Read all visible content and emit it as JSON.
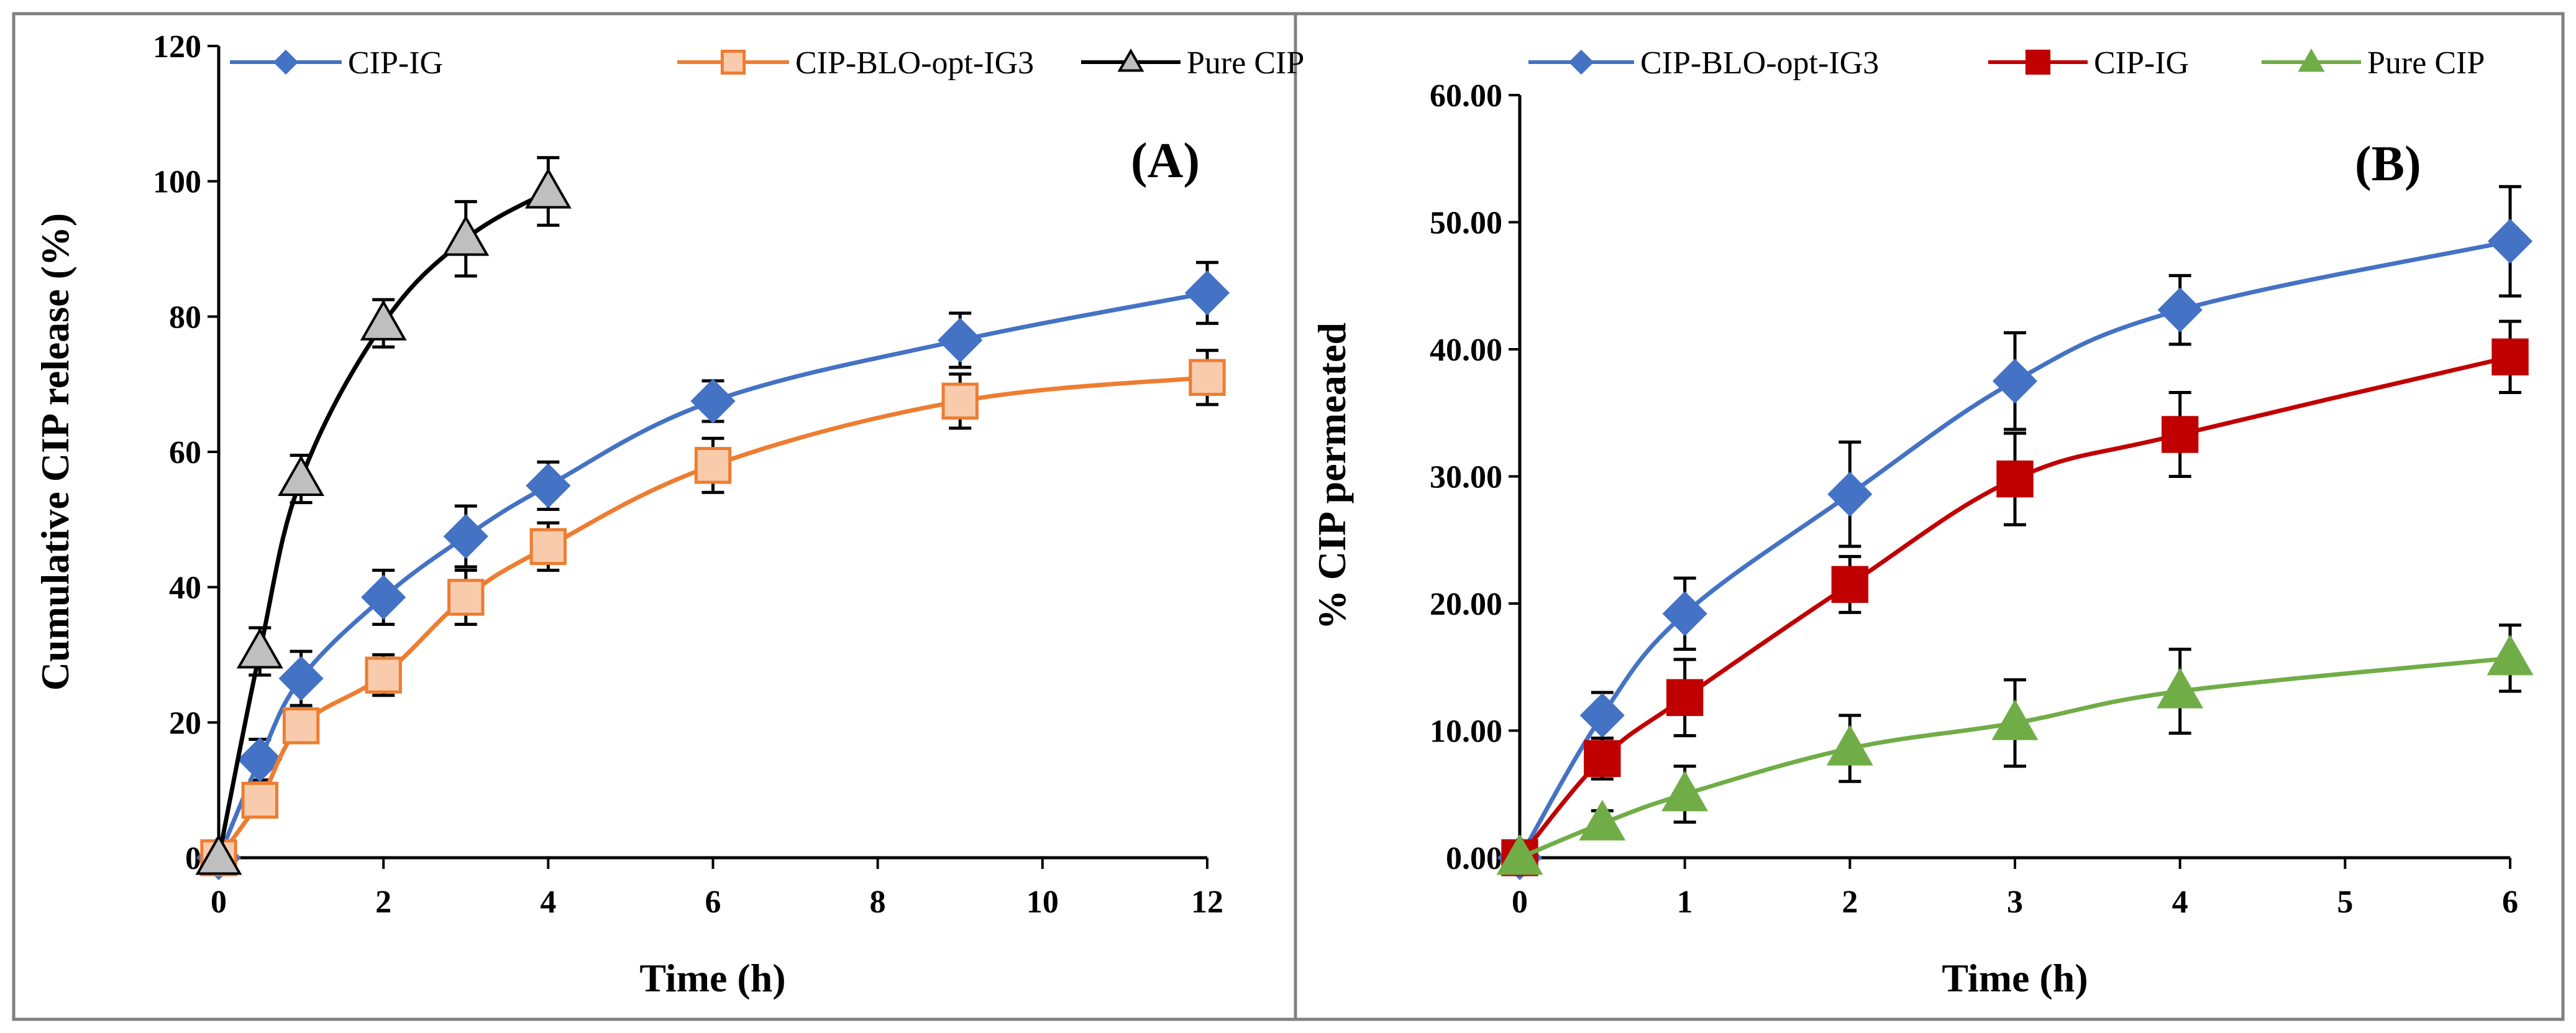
{
  "chart_data": [
    {
      "type": "line",
      "panel_label": "(A)",
      "xlabel": "Time (h)",
      "ylabel": "Cumulative  CIP  release (%)",
      "xlim": [
        0,
        12
      ],
      "ylim": [
        0,
        120
      ],
      "xticks": [
        0,
        2,
        4,
        6,
        8,
        10,
        12
      ],
      "yticks": [
        0,
        20,
        40,
        60,
        80,
        100,
        120
      ],
      "ytick_labels": [
        "0",
        "20",
        "40",
        "60",
        "80",
        "100",
        "120"
      ],
      "legend_position": "top",
      "grid": false,
      "series": [
        {
          "name": "CIP-IG",
          "color": "#4472C4",
          "marker": "diamond",
          "x": [
            0,
            0.5,
            1,
            2,
            3,
            4,
            6,
            9,
            12
          ],
          "y": [
            0,
            14.5,
            26.5,
            38.5,
            47.5,
            55,
            67.5,
            76.5,
            83.5
          ],
          "err": [
            0,
            3,
            4,
            4,
            4.5,
            3.5,
            3,
            4,
            4.5
          ]
        },
        {
          "name": "CIP-BLO-opt-IG3",
          "color": "#ED7D31",
          "fill": "#F8CBAD",
          "marker": "square",
          "x": [
            0,
            0.5,
            1,
            2,
            3,
            4,
            6,
            9,
            12
          ],
          "y": [
            0,
            8.5,
            19.5,
            27,
            38.5,
            46,
            58,
            67.5,
            71
          ],
          "err": [
            0,
            2,
            2.5,
            3,
            4,
            3.5,
            4,
            4,
            4
          ]
        },
        {
          "name": "Pure CIP",
          "color": "#000000",
          "fill": "#BFBFBF",
          "marker": "triangle",
          "x": [
            0,
            0.5,
            1,
            2,
            3,
            4
          ],
          "y": [
            0,
            30.5,
            56,
            79,
            91.5,
            98.5
          ],
          "err": [
            0,
            3.5,
            3.5,
            3.5,
            5.5,
            5
          ]
        }
      ]
    },
    {
      "type": "line",
      "panel_label": "(B)",
      "xlabel": "Time (h)",
      "ylabel": "% CIP  permeated",
      "xlim": [
        0,
        6
      ],
      "ylim": [
        0,
        60
      ],
      "xticks": [
        0,
        1,
        2,
        3,
        4,
        5,
        6
      ],
      "yticks": [
        0,
        10,
        20,
        30,
        40,
        50,
        60
      ],
      "ytick_labels": [
        "0.00",
        "10.00",
        "20.00",
        "30.00",
        "40.00",
        "50.00",
        "60.00"
      ],
      "legend_position": "top",
      "grid": false,
      "series": [
        {
          "name": "CIP-BLO-opt-IG3",
          "color": "#4472C4",
          "marker": "diamond",
          "x": [
            0,
            0.5,
            1,
            2,
            3,
            4,
            6
          ],
          "y": [
            0,
            11.2,
            19.2,
            28.6,
            37.5,
            43.1,
            48.5
          ],
          "err": [
            0,
            1.8,
            2.8,
            4.1,
            3.8,
            2.7,
            4.3
          ]
        },
        {
          "name": "CIP-IG",
          "color": "#C00000",
          "marker": "square",
          "x": [
            0,
            0.5,
            1,
            2,
            3,
            4,
            6
          ],
          "y": [
            0,
            7.8,
            12.6,
            21.5,
            29.8,
            33.3,
            39.4
          ],
          "err": [
            0,
            1.6,
            3,
            2.2,
            3.6,
            3.3,
            2.8
          ]
        },
        {
          "name": "Pure CIP",
          "color": "#70AD47",
          "marker": "triangle",
          "x": [
            0,
            0.5,
            1,
            2,
            3,
            4,
            6
          ],
          "y": [
            0,
            2.7,
            5.0,
            8.6,
            10.6,
            13.1,
            15.7
          ],
          "err": [
            0,
            1,
            2.2,
            2.6,
            3.4,
            3.3,
            2.6
          ]
        }
      ]
    }
  ]
}
